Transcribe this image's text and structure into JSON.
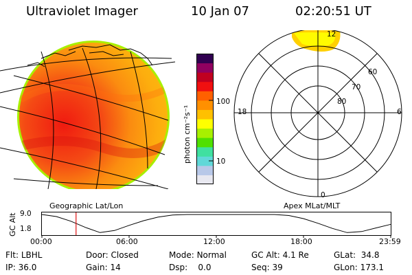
{
  "header": {
    "title": "Ultraviolet Imager",
    "date": "10 Jan 07",
    "time": "02:20:51 UT"
  },
  "colorbar": {
    "label": "photon cm⁻²s⁻¹",
    "ticks": [
      "100",
      "10"
    ],
    "colors": [
      "#e8e8f0",
      "#b8c8e8",
      "#60d8d8",
      "#40e0a0",
      "#50e000",
      "#a8f000",
      "#ffff00",
      "#ffc000",
      "#ff9000",
      "#ff6000",
      "#f01010",
      "#c00020",
      "#900060",
      "#300050"
    ]
  },
  "panels": {
    "left_caption": "Geographic Lat/Lon",
    "right_caption": "Apex MLat/MLT"
  },
  "polar": {
    "mlt_labels": [
      "12",
      "18",
      "6",
      "0"
    ],
    "lat_labels": [
      "60",
      "70",
      "80"
    ]
  },
  "chart_data": {
    "type": "line",
    "title": "GC Alt",
    "ylabel": "GC Alt",
    "y_ticks": [
      "9.0",
      "1.8"
    ],
    "ylim": [
      1.8,
      9.0
    ],
    "x_ticks": [
      "00:00",
      "06:00",
      "12:00",
      "18:00",
      "23:59"
    ],
    "x_hours": [
      0,
      1,
      2,
      3,
      4,
      5,
      6,
      7,
      8,
      9,
      10,
      11,
      12,
      13,
      14,
      15,
      16,
      17,
      18,
      19,
      20,
      21,
      22,
      23,
      24
    ],
    "values": [
      9.0,
      8.2,
      6.4,
      4.0,
      2.0,
      2.8,
      4.8,
      6.6,
      8.0,
      8.8,
      9.0,
      9.0,
      9.0,
      9.0,
      9.0,
      9.0,
      9.0,
      8.6,
      7.4,
      5.6,
      3.6,
      2.0,
      2.4,
      3.8,
      5.2
    ],
    "current_time_hours": 2.35
  },
  "info": {
    "flt_label": "Flt:",
    "flt_value": "LBHL",
    "ip_label": "IP:",
    "ip_value": "36.0",
    "door_label": "Door:",
    "door_value": "Closed",
    "gain_label": "Gain:",
    "gain_value": "14",
    "mode_label": "Mode:",
    "mode_value": "Normal",
    "dsp_label": "Dsp:",
    "dsp_value": "0.0",
    "gcalt_label": "GC Alt:",
    "gcalt_value": "4.1 Re",
    "seq_label": "Seq:",
    "seq_value": "39",
    "glat_label": "GLat:",
    "glat_value": "34.8",
    "glon_label": "GLon:",
    "glon_value": "173.1"
  }
}
